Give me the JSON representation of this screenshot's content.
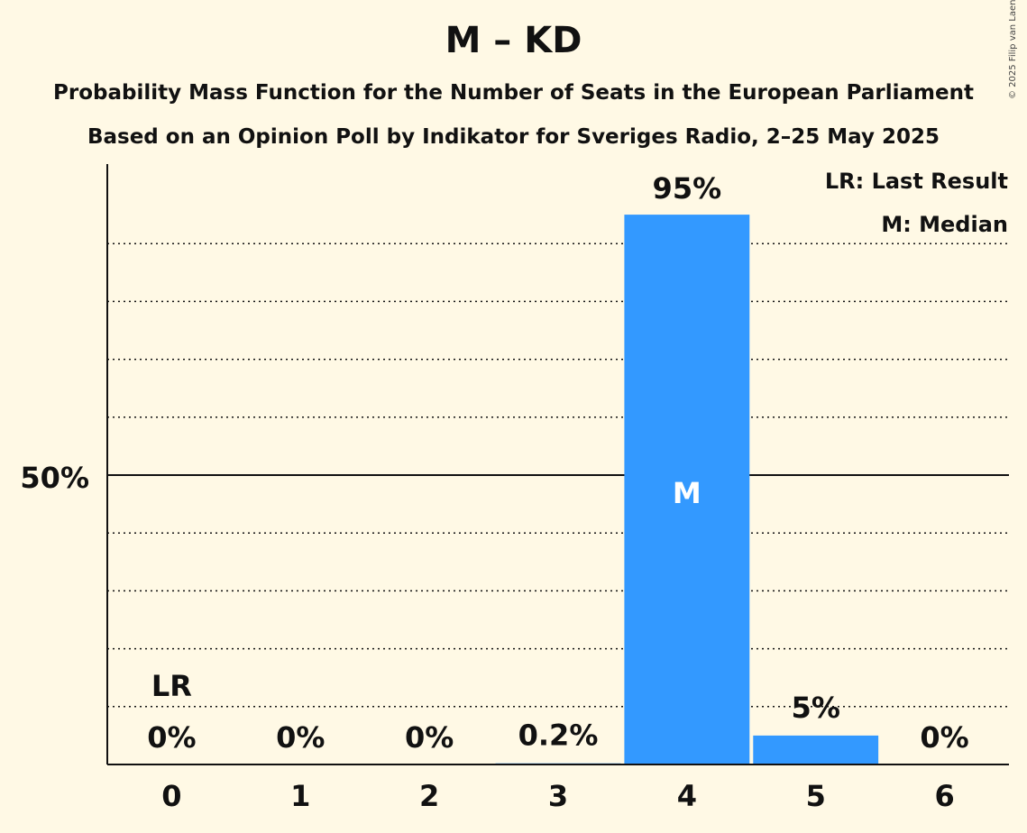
{
  "title": "M – KD",
  "subtitle_1": "Probability Mass Function for the Number of Seats in the European Parliament",
  "subtitle_2": "Based on an Opinion Poll by Indikator for Sveriges Radio, 2–25 May 2025",
  "copyright": "© 2025 Filip van Laenen",
  "legend": {
    "lr": "LR: Last Result",
    "m": "M: Median"
  },
  "colors": {
    "background": "#fff9e5",
    "bar": "#3399ff",
    "text": "#111111"
  },
  "chart_data": {
    "type": "bar",
    "categories": [
      "0",
      "1",
      "2",
      "3",
      "4",
      "5",
      "6"
    ],
    "values": [
      0,
      0,
      0,
      0.2,
      95,
      5,
      0
    ],
    "labels": [
      "0%",
      "0%",
      "0%",
      "0.2%",
      "95%",
      "5%",
      "0%"
    ],
    "ylim": [
      0,
      100
    ],
    "ytick_label": "50%",
    "ytick_value": 50,
    "last_result_category": "0",
    "last_result_label": "LR",
    "median_category": "4",
    "median_label": "M",
    "grid": "dotted every 10%",
    "legend_position": "top-right"
  }
}
